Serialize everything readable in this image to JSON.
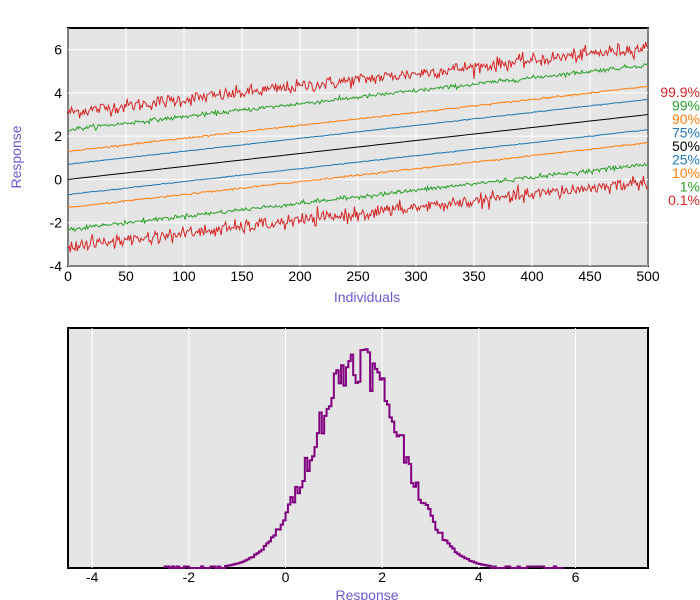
{
  "chart_data": [
    {
      "type": "line",
      "title": "",
      "xlabel": "Individuals",
      "ylabel": "Response",
      "xlim": [
        0,
        500
      ],
      "ylim": [
        -4,
        7
      ],
      "xticks": [
        0,
        50,
        100,
        150,
        200,
        250,
        300,
        350,
        400,
        450,
        500
      ],
      "yticks": [
        -4,
        -2,
        0,
        2,
        4,
        6
      ],
      "grid": true,
      "background": "#e5e5e5",
      "legend_placement": "right",
      "series": [
        {
          "name": "99.9%",
          "color": "#d62728",
          "start": 3.1,
          "end": 6.1,
          "noise": 0.16
        },
        {
          "name": "99%",
          "color": "#2ca02c",
          "start": 2.3,
          "end": 5.3,
          "noise": 0.05
        },
        {
          "name": "90%",
          "color": "#ff7f0e",
          "start": 1.3,
          "end": 4.3,
          "noise": 0.02
        },
        {
          "name": "75%",
          "color": "#1f77b4",
          "start": 0.7,
          "end": 3.7,
          "noise": 0.01
        },
        {
          "name": "50%",
          "color": "#000000",
          "start": 0.0,
          "end": 3.0,
          "noise": 0.0
        },
        {
          "name": "25%",
          "color": "#1f77b4",
          "start": -0.7,
          "end": 2.3,
          "noise": 0.01
        },
        {
          "name": "10%",
          "color": "#ff7f0e",
          "start": -1.3,
          "end": 1.7,
          "noise": 0.02
        },
        {
          "name": "1%",
          "color": "#2ca02c",
          "start": -2.3,
          "end": 0.7,
          "noise": 0.05
        },
        {
          "name": "0.1%",
          "color": "#d62728",
          "start": -3.1,
          "end": -0.1,
          "noise": 0.16
        }
      ]
    },
    {
      "type": "histogram",
      "title": "",
      "xlabel": "Response",
      "ylabel": "",
      "xlim": [
        -4.5,
        7.5
      ],
      "xticks": [
        -4,
        -2,
        0,
        2,
        4,
        6
      ],
      "grid": true,
      "background": "#e5e5e5",
      "color": "#800080",
      "mean": 1.5,
      "sd": 0.9,
      "bin_width": 0.05
    }
  ]
}
